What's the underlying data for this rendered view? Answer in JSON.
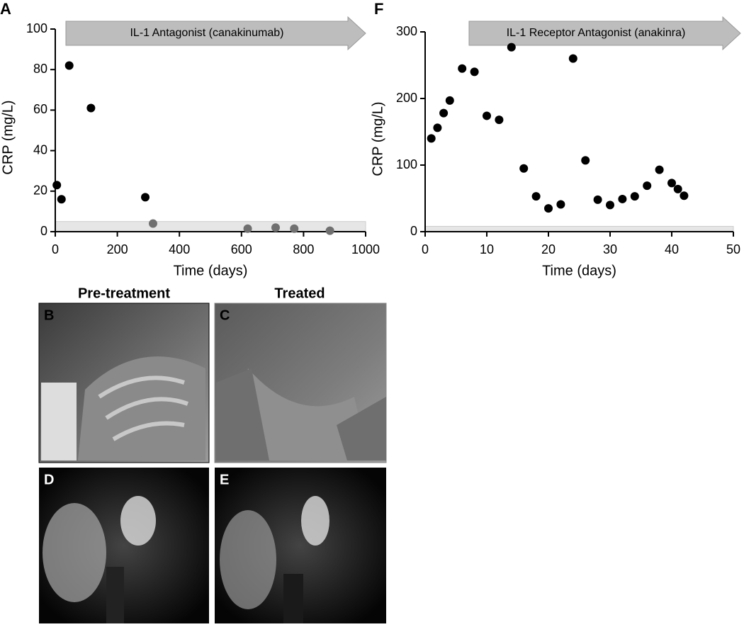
{
  "chart_data": [
    {
      "type": "scatter",
      "panel": "A",
      "annotation": "IL-1 Antagonist (canakinumab)",
      "x_label": "Time (days)",
      "y_label": "CRP (mg/L)",
      "x": [
        5,
        20,
        45,
        115,
        290,
        315,
        620,
        710,
        770,
        885
      ],
      "values": [
        23,
        16,
        82,
        61,
        17,
        4,
        1.5,
        2,
        1.5,
        0.5
      ],
      "point_colors": [
        "#000000",
        "#000000",
        "#000000",
        "#000000",
        "#000000",
        "#707070",
        "#707070",
        "#707070",
        "#707070",
        "#707070"
      ],
      "reference_band": [
        0,
        5
      ],
      "xlim": [
        0,
        1000
      ],
      "xticks": [
        0,
        200,
        400,
        600,
        800,
        1000
      ],
      "ylim": [
        0,
        100
      ],
      "yticks": [
        0,
        20,
        40,
        60,
        80,
        100
      ]
    },
    {
      "type": "scatter",
      "panel": "F",
      "annotation": "IL-1 Receptor Antagonist (anakinra)",
      "x_label": "Time (days)",
      "y_label": "CRP (mg/L)",
      "x": [
        1,
        2,
        3,
        4,
        6,
        8,
        10,
        12,
        14,
        16,
        18,
        20,
        22,
        24,
        26,
        28,
        30,
        32,
        34,
        36,
        38,
        40,
        41,
        42
      ],
      "values": [
        140,
        156,
        178,
        197,
        245,
        240,
        174,
        168,
        277,
        95,
        53,
        35,
        41,
        260,
        107,
        48,
        40,
        49,
        53,
        69,
        93,
        73,
        64,
        54
      ],
      "point_colors": [
        "#000000",
        "#000000",
        "#000000",
        "#000000",
        "#000000",
        "#000000",
        "#000000",
        "#000000",
        "#000000",
        "#000000",
        "#000000",
        "#000000",
        "#000000",
        "#000000",
        "#000000",
        "#000000",
        "#000000",
        "#000000",
        "#000000",
        "#000000",
        "#000000",
        "#000000",
        "#000000",
        "#000000"
      ],
      "reference_band": [
        0,
        8
      ],
      "xlim": [
        0,
        50
      ],
      "xticks": [
        0,
        10,
        20,
        30,
        40,
        50
      ],
      "ylim": [
        0,
        300
      ],
      "yticks": [
        0,
        100,
        200,
        300
      ]
    }
  ],
  "photos": {
    "column_titles": [
      "Pre-treatment",
      "Treated"
    ],
    "labels": [
      "B",
      "C",
      "D",
      "E"
    ]
  }
}
